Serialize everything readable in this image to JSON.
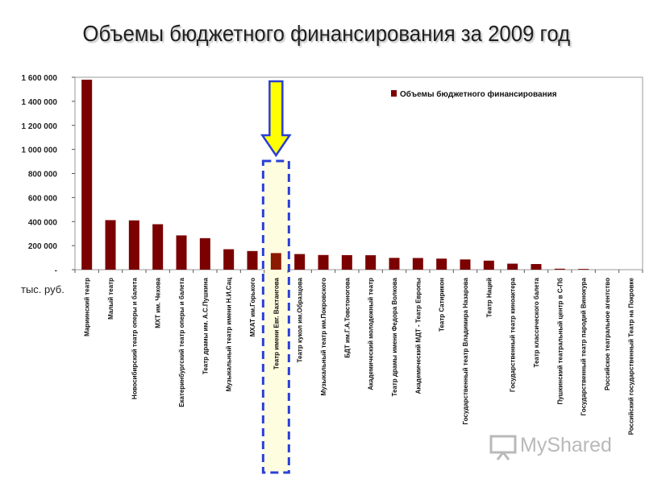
{
  "chart_data": {
    "type": "bar",
    "title": "Объемы бюджетного финансирования за 2009 год",
    "unit_label": "тыс. руб.",
    "legend": [
      "Объемы бюджетного финансирования"
    ],
    "legend_position": "top-right",
    "ylim": [
      0,
      1600000
    ],
    "yticks": [
      0,
      200000,
      400000,
      600000,
      800000,
      1000000,
      1200000,
      1400000,
      1600000
    ],
    "ytick_labels": [
      "-",
      "200 000",
      "400 000",
      "600 000",
      "800 000",
      "1 000 000",
      "1 200 000",
      "1 400 000",
      "1 600 000"
    ],
    "highlight_category": "Театр имени Евг. Вахтангова",
    "colors": {
      "bar": "#7b0000",
      "highlight_bar": "#8b1a00",
      "highlight_box": "#2a3fd6",
      "highlight_fill": "#fffde0",
      "arrow": "#ffff00"
    },
    "categories": [
      "Мариинский театр",
      "Малый театр",
      "Новосибирский театр оперы и балета",
      "МХТ им. Чехова",
      "Екатеринбургский театр оперы и балета",
      "Театр драмы им. А.С.Пушкина",
      "Музыкальный театр имени Н.И.Сац",
      "МХАТ им.Горького",
      "Театр имени Евг. Вахтангова",
      "Театр кукол им.Образцова",
      "Музыкальный театр им.Покровского",
      "БДТ им.Г.А.Товстоногова",
      "Академический молодежный театр",
      "Театр драмы имени Федора Волкова",
      "Академический МДТ - Театр Европы",
      "Театр Сатирикон",
      "Государственный театр Владимира Назарова",
      "Театр Наций",
      "Государственный театр киноактера",
      "Театр классического балета",
      "Пушкинский театральный центр в С-Пб",
      "Государственный театр пародий Винокура",
      "Российское театральное агентство",
      "Российский государственный Театр на Покровке"
    ],
    "values": [
      1580000,
      412000,
      410000,
      378000,
      285000,
      262000,
      170000,
      155000,
      138000,
      130000,
      122000,
      121000,
      120000,
      98000,
      97000,
      92000,
      85000,
      75000,
      50000,
      47000,
      8000,
      6000,
      0,
      0
    ]
  },
  "watermark": {
    "text": "MyShared",
    "icon": "projector-screen-icon"
  }
}
